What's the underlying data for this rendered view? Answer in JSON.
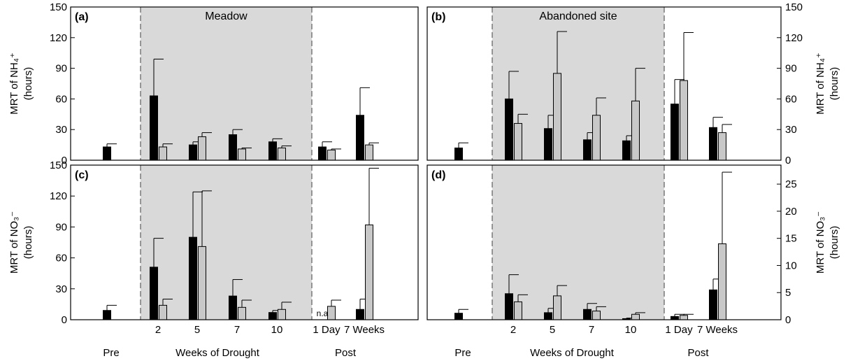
{
  "figure": {
    "group_labels": [
      "Pre",
      "Weeks of Drought",
      "Post"
    ],
    "series_colors": {
      "treatment": "#000000",
      "control": "#c8c8c8"
    },
    "shade_color": "#d9d9d9"
  },
  "chart_data": [
    {
      "id": "a",
      "panel_label": "(a)",
      "title": "Meadow",
      "type": "bar",
      "row": "top",
      "side": "left",
      "ylabel": [
        "MRT of NH₄⁺",
        "(hours)"
      ],
      "ylim": [
        0,
        150
      ],
      "yticks": [
        0,
        30,
        60,
        90,
        120,
        150
      ],
      "categories": [
        "Pre",
        "2",
        "5",
        "7",
        "10",
        "1 Day",
        "7 Weeks"
      ],
      "series": [
        {
          "key": "treatment",
          "values": [
            13,
            63,
            15,
            25,
            18,
            13,
            44
          ],
          "errors": [
            3,
            36,
            3,
            5,
            3,
            5,
            27
          ]
        },
        {
          "key": "control",
          "values": [
            null,
            13,
            23,
            11,
            12,
            10,
            15
          ],
          "errors": [
            null,
            3,
            4,
            1,
            2,
            1,
            2
          ]
        }
      ],
      "annotations": []
    },
    {
      "id": "b",
      "panel_label": "(b)",
      "title": "Abandoned site",
      "type": "bar",
      "row": "top",
      "side": "right",
      "ylabel": [
        "MRT of NH₄⁺",
        "(hours)"
      ],
      "ylim": [
        0,
        150
      ],
      "yticks": [
        0,
        30,
        60,
        90,
        120,
        150
      ],
      "categories": [
        "Pre",
        "2",
        "5",
        "7",
        "10",
        "1 Day",
        "7 Weeks"
      ],
      "series": [
        {
          "key": "treatment",
          "values": [
            12,
            60,
            31,
            20,
            19,
            55,
            32
          ],
          "errors": [
            5,
            27,
            13,
            7,
            5,
            24,
            10
          ]
        },
        {
          "key": "control",
          "values": [
            null,
            36,
            85,
            44,
            58,
            78,
            27
          ],
          "errors": [
            null,
            9,
            41,
            17,
            32,
            47,
            8
          ]
        }
      ],
      "annotations": []
    },
    {
      "id": "c",
      "panel_label": "(c)",
      "title": "",
      "type": "bar",
      "row": "bottom",
      "side": "left",
      "ylabel": [
        "MRT of NO₃⁻",
        "(hours)"
      ],
      "ylim": [
        0,
        150
      ],
      "yticks": [
        0,
        30,
        60,
        90,
        120,
        150
      ],
      "categories": [
        "Pre",
        "2",
        "5",
        "7",
        "10",
        "1 Day",
        "7 Weeks"
      ],
      "series": [
        {
          "key": "treatment",
          "values": [
            9,
            51,
            80,
            23,
            7,
            null,
            10
          ],
          "errors": [
            5,
            28,
            44,
            16,
            2,
            null,
            10
          ]
        },
        {
          "key": "control",
          "values": [
            null,
            14,
            71,
            12,
            10,
            13,
            92
          ],
          "errors": [
            null,
            6,
            54,
            7,
            7,
            6,
            55
          ]
        }
      ],
      "annotations": [
        {
          "text": "n.a",
          "category": "1 Day",
          "series": "treatment"
        }
      ]
    },
    {
      "id": "d",
      "panel_label": "(d)",
      "title": "",
      "type": "bar",
      "row": "bottom",
      "side": "right",
      "ylabel": [
        "MRT of NO₃⁻",
        "(hours)"
      ],
      "ylim": [
        0,
        28.5
      ],
      "yticks": [
        0,
        5,
        10,
        15,
        20,
        25
      ],
      "categories": [
        "Pre",
        "2",
        "5",
        "7",
        "10",
        "1 Day",
        "7 Weeks"
      ],
      "series": [
        {
          "key": "treatment",
          "values": [
            1.2,
            4.8,
            1.3,
            1.9,
            0.2,
            0.6,
            5.5
          ],
          "errors": [
            0.7,
            3.5,
            0.8,
            1.1,
            0.1,
            0.4,
            2.0
          ]
        },
        {
          "key": "control",
          "values": [
            null,
            3.3,
            4.4,
            1.6,
            1.0,
            0.8,
            14.0
          ],
          "errors": [
            null,
            1.3,
            1.9,
            0.8,
            0.3,
            0.2,
            13.2
          ]
        }
      ],
      "annotations": []
    }
  ]
}
